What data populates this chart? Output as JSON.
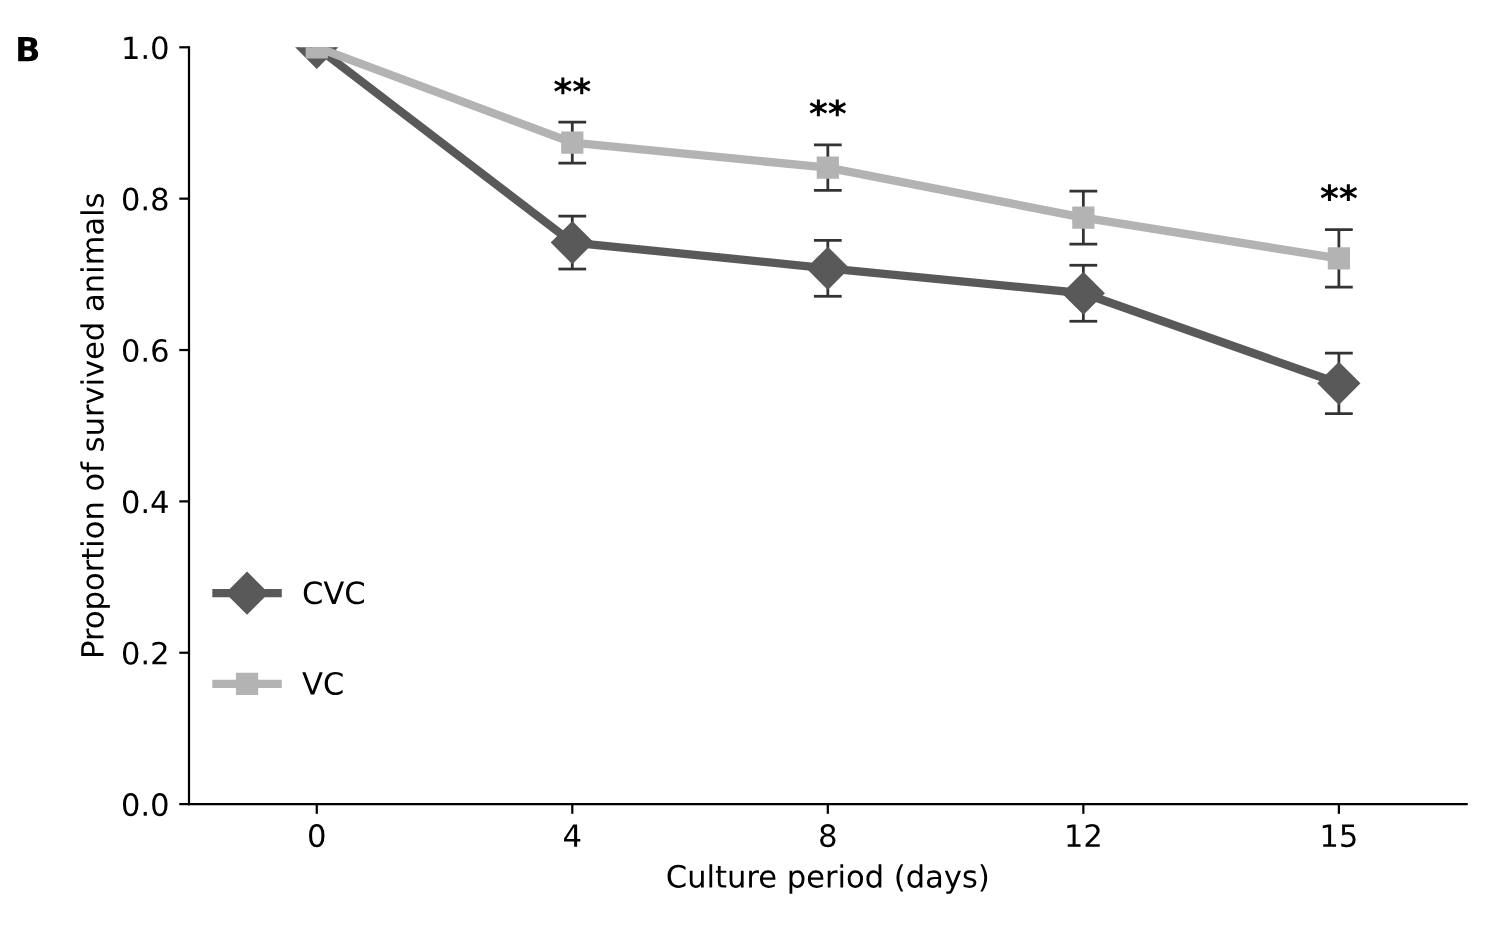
{
  "chart_data": {
    "type": "line",
    "xlabel": "Culture period (days)",
    "ylabel": "Proportion of survived animals",
    "categories": [
      "0",
      "4",
      "8",
      "12",
      "15"
    ],
    "series": [
      {
        "name": "CVC",
        "color": "#595959",
        "marker": "diamond",
        "values": [
          1.0,
          0.742,
          0.708,
          0.675,
          0.556
        ],
        "errors": [
          null,
          0.035,
          0.037,
          0.037,
          0.04
        ]
      },
      {
        "name": "VC",
        "color": "#b3b3b3",
        "marker": "square",
        "values": [
          1.0,
          0.874,
          0.841,
          0.775,
          0.721
        ],
        "errors": [
          null,
          0.027,
          0.03,
          0.035,
          0.038
        ]
      }
    ],
    "ylim": [
      0,
      1.0
    ],
    "yticks": [
      {
        "value": 0,
        "label": "0.0"
      },
      0.2,
      0.4,
      0.6,
      0.8,
      {
        "value": 1,
        "label": "1.0"
      }
    ],
    "grid": false,
    "legend": "bottom left",
    "line_style": "solid",
    "annotations": [
      "B",
      {
        "text": "**",
        "x": "4",
        "y": 0.9
      },
      {
        "text": "**",
        "x": "8",
        "y": 0.871
      },
      {
        "text": "**",
        "x": "15",
        "y": 0.759
      }
    ]
  }
}
